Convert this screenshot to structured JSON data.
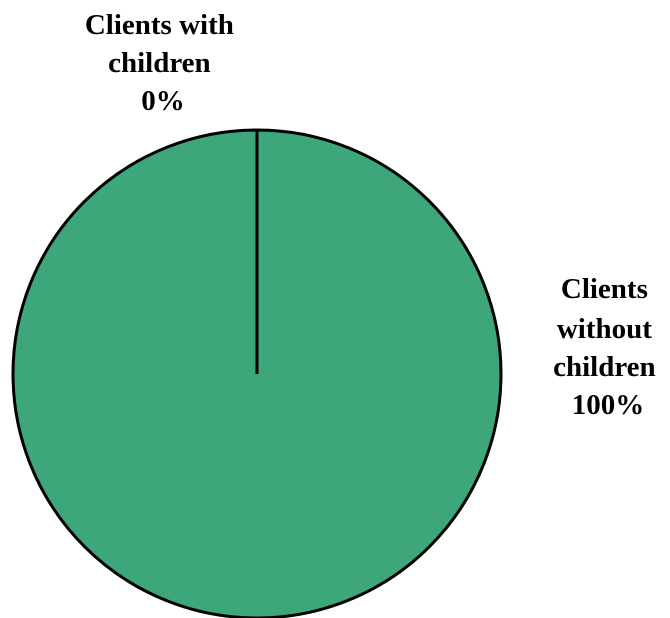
{
  "chart_data": {
    "type": "pie",
    "slices": [
      {
        "label_lines": [
          "Clients with",
          "children",
          "0%"
        ],
        "value": 0,
        "color": "#3EA67B"
      },
      {
        "label_lines": [
          "Clients",
          "without",
          "children",
          "100%"
        ],
        "value": 100,
        "color": "#3EA67B"
      }
    ],
    "edge_color": "#000000"
  }
}
